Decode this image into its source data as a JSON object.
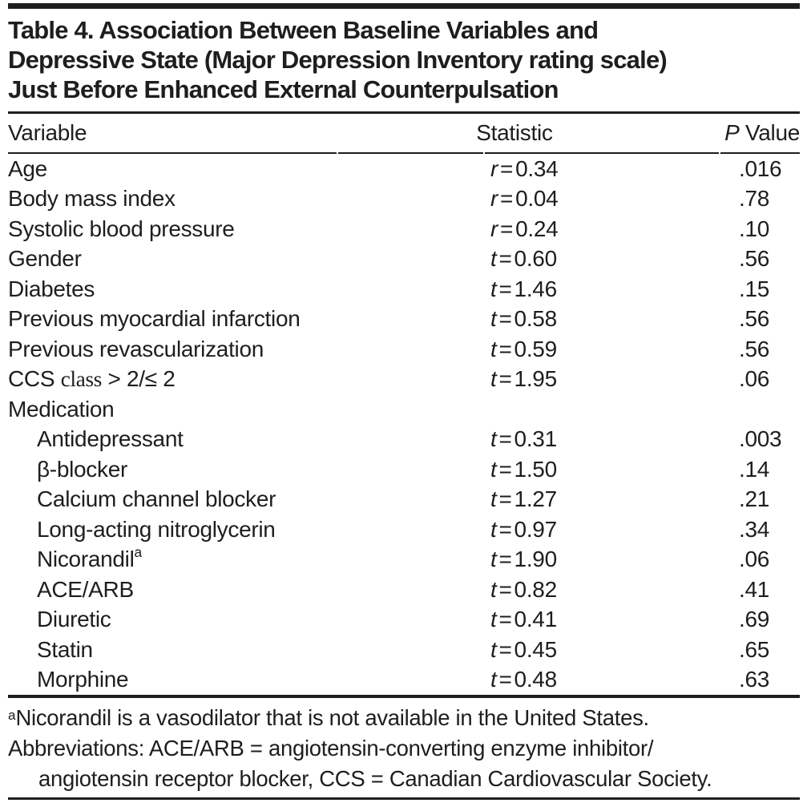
{
  "title": {
    "lines": [
      "Table 4. Association Between Baseline Variables and",
      "Depressive State (Major Depression Inventory rating scale)",
      "Just Before Enhanced External Counterpulsation"
    ]
  },
  "table": {
    "headers": {
      "variable": "Variable",
      "statistic": "Statistic",
      "p_italic": "P",
      "p_rest": " Value"
    },
    "equals": "=",
    "rows": [
      {
        "label": "Age",
        "indent": false,
        "stat_letter": "r",
        "stat_value": "0.34",
        "p": ".016"
      },
      {
        "label": "Body mass index",
        "indent": false,
        "stat_letter": "r",
        "stat_value": "0.04",
        "p": ".78"
      },
      {
        "label": "Systolic blood pressure",
        "indent": false,
        "stat_letter": "r",
        "stat_value": "0.24",
        "p": ".10"
      },
      {
        "label": "Gender",
        "indent": false,
        "stat_letter": "t",
        "stat_value": "0.60",
        "p": ".56"
      },
      {
        "label": "Diabetes",
        "indent": false,
        "stat_letter": "t",
        "stat_value": "1.46",
        "p": ".15"
      },
      {
        "label": "Previous myocardial infarction",
        "indent": false,
        "stat_letter": "t",
        "stat_value": "0.58",
        "p": ".56"
      },
      {
        "label": "Previous revascularization",
        "indent": false,
        "stat_letter": "t",
        "stat_value": "0.59",
        "p": ".56"
      },
      {
        "label": "CCS class > 2/≤ 2",
        "label_parts": [
          {
            "text": "CCS "
          },
          {
            "text": "class",
            "serif": true
          },
          {
            "text": " > 2/≤ 2"
          }
        ],
        "indent": false,
        "stat_letter": "t",
        "stat_value": "1.95",
        "p": ".06"
      },
      {
        "label": "Medication",
        "indent": false,
        "group": true
      },
      {
        "label": "Antidepressant",
        "indent": true,
        "stat_letter": "t",
        "stat_value": "0.31",
        "p": ".003"
      },
      {
        "label": "β-blocker",
        "indent": true,
        "stat_letter": "t",
        "stat_value": "1.50",
        "p": ".14"
      },
      {
        "label": "Calcium channel blocker",
        "indent": true,
        "stat_letter": "t",
        "stat_value": "1.27",
        "p": ".21"
      },
      {
        "label": "Long-acting nitroglycerin",
        "indent": true,
        "stat_letter": "t",
        "stat_value": "0.97",
        "p": ".34"
      },
      {
        "label": "Nicorandil",
        "sup": "a",
        "indent": true,
        "stat_letter": "t",
        "stat_value": "1.90",
        "p": ".06"
      },
      {
        "label": "ACE/ARB",
        "indent": true,
        "stat_letter": "t",
        "stat_value": "0.82",
        "p": ".41"
      },
      {
        "label": "Diuretic",
        "indent": true,
        "stat_letter": "t",
        "stat_value": "0.41",
        "p": ".69"
      },
      {
        "label": "Statin",
        "indent": true,
        "stat_letter": "t",
        "stat_value": "0.45",
        "p": ".65"
      },
      {
        "label": "Morphine",
        "indent": true,
        "stat_letter": "t",
        "stat_value": "0.48",
        "p": ".63"
      }
    ]
  },
  "footnotes": {
    "note_a": {
      "sup": "a",
      "text": "Nicorandil is a vasodilator that is not available in the United States."
    },
    "abbreviations": {
      "line1": "Abbreviations: ACE/ARB = angiotensin-converting enzyme inhibitor/",
      "line2": "angiotensin receptor blocker, CCS = Canadian Cardiovascular Society."
    }
  },
  "colors": {
    "text": "#1f1d1e",
    "rule": "#1f1d1e",
    "background": "#ffffff"
  }
}
